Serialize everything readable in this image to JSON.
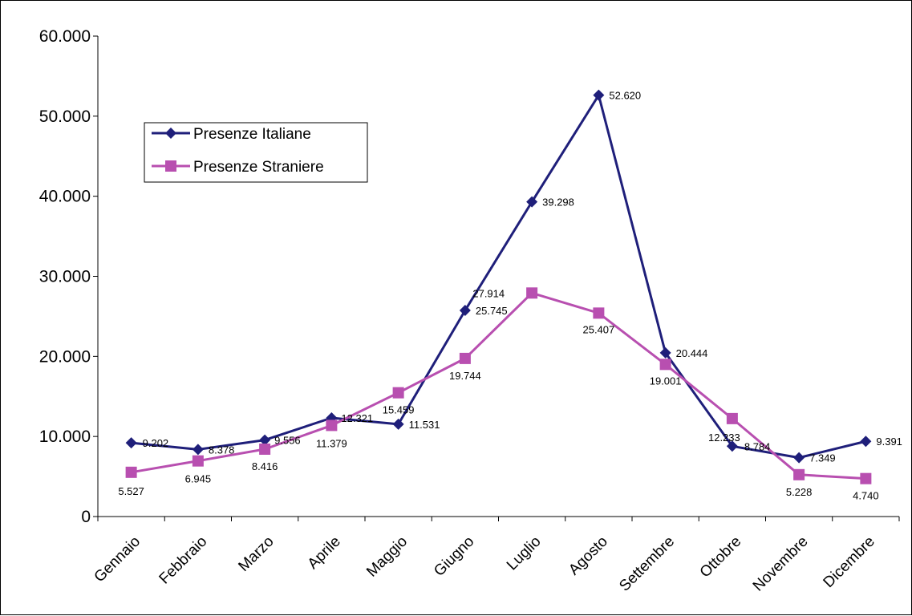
{
  "chart_data": {
    "type": "line",
    "categories": [
      "Gennaio",
      "Febbraio",
      "Marzo",
      "Aprile",
      "Maggio",
      "Giugno",
      "Luglio",
      "Agosto",
      "Settembre",
      "Ottobre",
      "Novembre",
      "Dicembre"
    ],
    "series": [
      {
        "name": "Presenze Italiane",
        "color": "#1F1F7A",
        "marker": "diamond",
        "values": [
          9202,
          8378,
          9556,
          12321,
          11531,
          25745,
          39298,
          52620,
          20444,
          8784,
          7349,
          9391
        ],
        "labels": [
          "9.202",
          "8.378",
          "9.556",
          "12.321",
          "11.531",
          "25.745",
          "39.298",
          "52.620",
          "20.444",
          "8.784",
          "7.349",
          "9.391"
        ]
      },
      {
        "name": "Presenze Straniere",
        "color": "#B84FB0",
        "marker": "square",
        "values": [
          5527,
          6945,
          8416,
          11379,
          15459,
          19744,
          27914,
          25407,
          19001,
          12233,
          5228,
          4740
        ],
        "labels": [
          "5.527",
          "6.945",
          "8.416",
          "11.379",
          "15.459",
          "19.744",
          "27.914",
          "25.407",
          "19.001",
          "12.233",
          "5.228",
          "4.740"
        ]
      }
    ],
    "yticks": [
      0,
      10000,
      20000,
      30000,
      40000,
      50000,
      60000
    ],
    "ytick_labels": [
      "0",
      "10.000",
      "20.000",
      "30.000",
      "40.000",
      "50.000",
      "60.000"
    ],
    "ylim": [
      0,
      60000
    ],
    "grid": false,
    "legend_position": "top-left"
  }
}
